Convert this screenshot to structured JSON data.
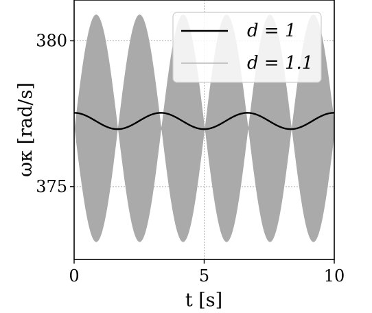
{
  "chart_data": {
    "type": "line",
    "xlabel": "t [s]",
    "ylabel": "ωκ [rad/s]",
    "xlim": [
      0,
      10
    ],
    "ylim": [
      372.5,
      381.4
    ],
    "xticks": [
      0,
      5,
      10
    ],
    "xtick_labels": [
      "0",
      "5",
      "10"
    ],
    "yticks": [
      375,
      380
    ],
    "ytick_labels": [
      "375",
      "380"
    ],
    "grid": true,
    "legend_position": "top-right",
    "series": [
      {
        "name": "d = 1",
        "color": "#000000",
        "kind": "line",
        "mean": 377.25,
        "amplitude": 0.28,
        "period_s": 3.33
      },
      {
        "name": "d = 1.1",
        "color": "#aaaaaa",
        "kind": "envelope",
        "mean": 377.0,
        "amplitude": 3.9,
        "beat_period_s": 1.67,
        "first_peak_t": 0.85
      }
    ]
  }
}
